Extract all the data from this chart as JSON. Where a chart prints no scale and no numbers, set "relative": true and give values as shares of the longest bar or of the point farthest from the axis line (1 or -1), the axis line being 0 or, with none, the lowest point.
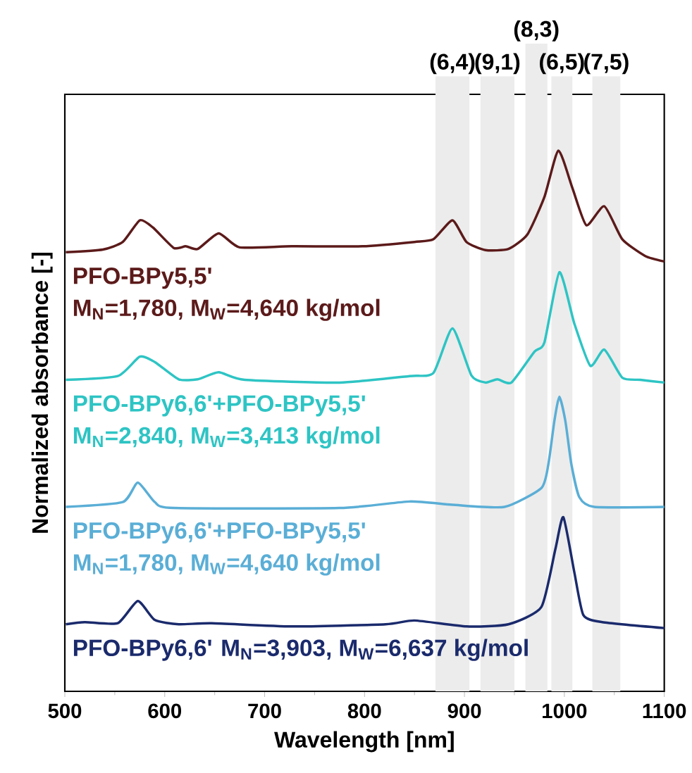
{
  "chart_data": {
    "type": "line",
    "relative": true,
    "xlabel": "Wavelength [nm]",
    "ylabel": "Normalized absorbance [-]",
    "xlim": [
      500,
      1100
    ],
    "xticks": [
      500,
      600,
      700,
      800,
      900,
      1000,
      1100
    ],
    "grid": false,
    "annotations": [
      "M$_{N}$=1,780, M$_{W}$=4,640 kg/mol",
      "M$_{N}$=2,840, M$_{W}$=3,413 kg/mol",
      "M$_{N}$=1,780, M$_{W}$=4,640 kg/mol",
      "M$_{N}$=3,903, M$_{W}$=6,637 kg/mol"
    ],
    "series": [
      {
        "name": "PFO-BPy5,5'",
        "color": "#5c1a1a",
        "x": [
          501,
          538,
          558,
          575,
          588,
          609,
          621,
          633,
          654,
          675,
          727,
          798,
          850,
          869,
          888,
          902,
          921,
          944,
          963,
          980,
          994,
          1008,
          1022,
          1040,
          1058,
          1081,
          1100
        ],
        "values": [
          0.812,
          0.817,
          0.831,
          0.871,
          0.858,
          0.82,
          0.823,
          0.818,
          0.847,
          0.821,
          0.823,
          0.823,
          0.831,
          0.836,
          0.871,
          0.831,
          0.816,
          0.818,
          0.845,
          0.914,
          1.0,
          0.931,
          0.862,
          0.897,
          0.836,
          0.805,
          0.795
        ]
      },
      {
        "name": "PFO-BPy6,6'+PFO-BPy5,5'",
        "color": "#2ec4c4",
        "x": [
          501,
          553,
          575,
          590,
          614,
          633,
          654,
          680,
          775,
          845,
          869,
          888,
          907,
          921,
          933,
          947,
          970,
          980,
          995,
          1010,
          1026,
          1040,
          1058,
          1076,
          1100
        ],
        "values": [
          0.576,
          0.583,
          0.619,
          0.609,
          0.577,
          0.577,
          0.59,
          0.576,
          0.571,
          0.583,
          0.589,
          0.671,
          0.584,
          0.571,
          0.577,
          0.571,
          0.628,
          0.645,
          0.775,
          0.68,
          0.602,
          0.632,
          0.58,
          0.576,
          0.571
        ]
      },
      {
        "name": "PFO-BPy6,6'+PFO-BPy5,5'",
        "color": "#5aaed6",
        "x": [
          501,
          558,
          573,
          590,
          609,
          775,
          845,
          888,
          940,
          977,
          984,
          990,
          995,
          1001,
          1007,
          1015,
          1030,
          1100
        ],
        "values": [
          0.341,
          0.35,
          0.386,
          0.35,
          0.339,
          0.339,
          0.351,
          0.345,
          0.341,
          0.376,
          0.42,
          0.5,
          0.545,
          0.5,
          0.42,
          0.359,
          0.341,
          0.341
        ]
      },
      {
        "name": "PFO-BPy6,6'",
        "color": "#1a2a6c",
        "x": [
          501,
          520,
          553,
          573,
          590,
          614,
          647,
          727,
          821,
          850,
          902,
          944,
          977,
          991,
          999,
          1010,
          1019,
          1038,
          1100
        ],
        "values": [
          0.124,
          0.128,
          0.126,
          0.167,
          0.132,
          0.124,
          0.126,
          0.12,
          0.124,
          0.131,
          0.12,
          0.124,
          0.156,
          0.263,
          0.322,
          0.22,
          0.141,
          0.128,
          0.117
        ]
      }
    ],
    "bands": [
      {
        "axis": "x",
        "from": 871,
        "to": 905,
        "label": "(6,4)",
        "color": "#ececec"
      },
      {
        "axis": "x",
        "from": 916,
        "to": 950,
        "label": "(9,1)",
        "color": "#ececec"
      },
      {
        "axis": "x",
        "from": 961,
        "to": 983,
        "label": "(8,3)",
        "color": "#ececec"
      },
      {
        "axis": "x",
        "from": 987,
        "to": 1008,
        "label": "(6,5)",
        "color": "#ececec"
      },
      {
        "axis": "x",
        "from": 1028,
        "to": 1056,
        "label": "(7,5)",
        "color": "#ececec"
      }
    ]
  }
}
